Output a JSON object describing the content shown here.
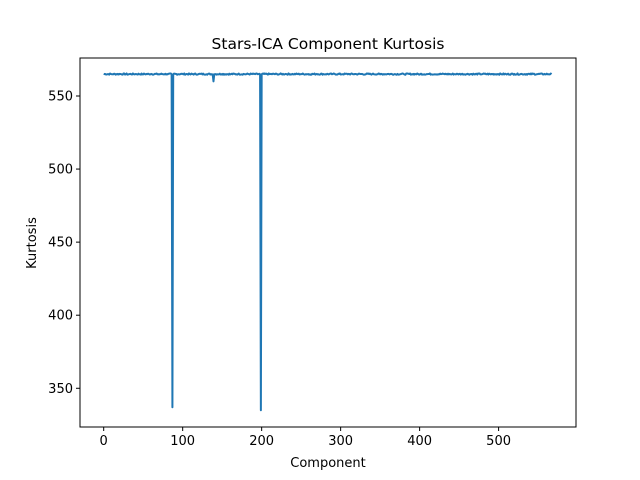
{
  "chart_data": {
    "type": "line",
    "title": "Stars-ICA Component Kurtosis",
    "xlabel": "Component",
    "ylabel": "Kurtosis",
    "xlim": [
      -30,
      598
    ],
    "ylim": [
      323.5,
      576
    ],
    "xticks": [
      0,
      100,
      200,
      300,
      400,
      500
    ],
    "yticks": [
      350,
      400,
      450,
      500,
      550
    ],
    "grid": false,
    "series": [
      {
        "color": "#1f77b4",
        "baseline": 565,
        "n_points": 568,
        "points": [
          [
            0,
            565.2
          ],
          [
            10,
            564.9
          ],
          [
            20,
            565.1
          ],
          [
            30,
            564.6
          ],
          [
            40,
            565.0
          ],
          [
            50,
            564.8
          ],
          [
            60,
            565.1
          ],
          [
            70,
            564.7
          ],
          [
            80,
            565.0
          ],
          [
            86,
            564.9
          ],
          [
            87,
            337.0
          ],
          [
            88,
            564.8
          ],
          [
            100,
            565.1
          ],
          [
            110,
            564.7
          ],
          [
            120,
            565.0
          ],
          [
            130,
            564.9
          ],
          [
            138,
            564.8
          ],
          [
            139,
            560.0
          ],
          [
            140,
            564.9
          ],
          [
            150,
            565.1
          ],
          [
            160,
            564.7
          ],
          [
            170,
            565.0
          ],
          [
            180,
            564.8
          ],
          [
            190,
            565.1
          ],
          [
            198,
            564.9
          ],
          [
            199,
            335.0
          ],
          [
            200,
            564.8
          ],
          [
            210,
            565.0
          ],
          [
            220,
            564.7
          ],
          [
            230,
            565.1
          ],
          [
            240,
            564.8
          ],
          [
            250,
            565.0
          ],
          [
            260,
            564.6
          ],
          [
            270,
            565.1
          ],
          [
            280,
            564.8
          ],
          [
            290,
            565.0
          ],
          [
            300,
            564.7
          ],
          [
            310,
            565.1
          ],
          [
            320,
            564.9
          ],
          [
            330,
            564.6
          ],
          [
            340,
            565.0
          ],
          [
            350,
            564.8
          ],
          [
            360,
            565.1
          ],
          [
            370,
            564.7
          ],
          [
            380,
            565.0
          ],
          [
            390,
            564.9
          ],
          [
            400,
            564.6
          ],
          [
            410,
            565.0
          ],
          [
            420,
            564.8
          ],
          [
            430,
            565.1
          ],
          [
            440,
            564.7
          ],
          [
            450,
            565.0
          ],
          [
            460,
            564.9
          ],
          [
            470,
            564.7
          ],
          [
            480,
            565.1
          ],
          [
            490,
            564.8
          ],
          [
            500,
            565.0
          ],
          [
            510,
            564.7
          ],
          [
            520,
            565.1
          ],
          [
            530,
            564.9
          ],
          [
            540,
            564.8
          ],
          [
            550,
            565.0
          ],
          [
            560,
            564.8
          ],
          [
            567,
            564.9
          ]
        ]
      }
    ]
  }
}
